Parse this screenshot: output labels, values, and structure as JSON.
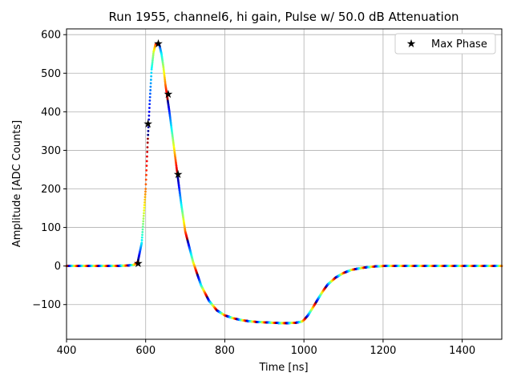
{
  "chart_data": {
    "type": "scatter",
    "title": "Run 1955, channel6, hi gain, Pulse w/ 50.0 dB Attenuation",
    "xlabel": "Time [ns]",
    "ylabel": "Amplitude [ADC Counts]",
    "xlim": [
      400,
      1500
    ],
    "ylim": [
      -190,
      615
    ],
    "xticks": [
      400,
      600,
      800,
      1000,
      1200,
      1400
    ],
    "yticks": [
      -100,
      0,
      100,
      200,
      300,
      400,
      500,
      600
    ],
    "grid": true,
    "legend": {
      "placement": "top-right",
      "entries": [
        "Max Phase"
      ]
    },
    "colormap": "jet",
    "pulse_curve": {
      "x": [
        400,
        450,
        500,
        550,
        570,
        580,
        590,
        600,
        605,
        610,
        615,
        620,
        625,
        630,
        635,
        640,
        645,
        650,
        660,
        670,
        680,
        690,
        700,
        720,
        740,
        760,
        780,
        800,
        820,
        840,
        860,
        880,
        900,
        920,
        940,
        960,
        980,
        995,
        1000,
        1010,
        1020,
        1030,
        1040,
        1050,
        1060,
        1080,
        1100,
        1120,
        1140,
        1160,
        1180,
        1200,
        1250,
        1300,
        1350,
        1400,
        1450,
        1500
      ],
      "y": [
        0,
        0,
        0,
        1,
        3,
        10,
        60,
        200,
        320,
        420,
        510,
        555,
        575,
        578,
        572,
        550,
        515,
        470,
        400,
        320,
        240,
        160,
        90,
        10,
        -50,
        -90,
        -115,
        -128,
        -135,
        -140,
        -143,
        -145,
        -146,
        -147,
        -148,
        -148,
        -147,
        -144,
        -140,
        -128,
        -112,
        -95,
        -78,
        -62,
        -48,
        -30,
        -18,
        -10,
        -6,
        -3,
        -1,
        0,
        0,
        0,
        0,
        0,
        0,
        0
      ]
    },
    "max_phase": {
      "name": "Max Phase",
      "x": [
        581,
        606,
        632,
        657,
        682
      ],
      "y": [
        8,
        370,
        578,
        446,
        238
      ]
    }
  }
}
